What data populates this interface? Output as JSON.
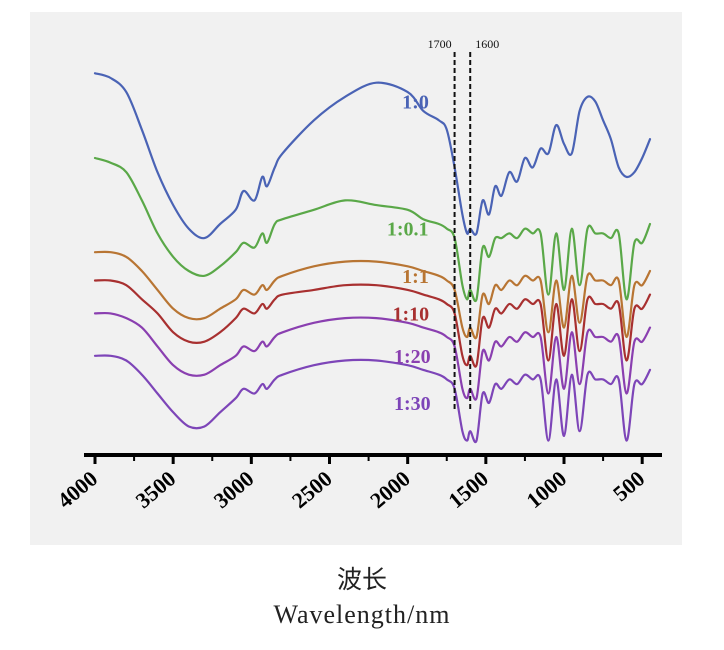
{
  "chart_data": {
    "type": "line",
    "xlabel_cn": "波长",
    "xlabel": "Wavelength/nm",
    "x_reversed": true,
    "xlim": [
      4000,
      450
    ],
    "xticks": [
      4000,
      3500,
      3000,
      2500,
      2000,
      1500,
      1000,
      500
    ],
    "tick_labels": [
      "4000",
      "3500",
      "3000",
      "2500",
      "2000",
      "1500",
      "1000",
      "500"
    ],
    "y_axis_shown": false,
    "grid": false,
    "legend": "inline labels on each trace",
    "reference_lines": [
      {
        "x": 1700,
        "label": "1700",
        "style": "dashed"
      },
      {
        "x": 1600,
        "label": "1600",
        "style": "dashed"
      }
    ],
    "series": [
      {
        "name": "1:0",
        "color": "#4a63b5",
        "offset": 0,
        "x": [
          4000,
          3900,
          3800,
          3700,
          3600,
          3500,
          3400,
          3300,
          3200,
          3100,
          3050,
          2980,
          2930,
          2900,
          2850,
          2800,
          2600,
          2400,
          2200,
          2000,
          1900,
          1800,
          1750,
          1700,
          1650,
          1620,
          1600,
          1560,
          1520,
          1480,
          1440,
          1400,
          1350,
          1300,
          1250,
          1200,
          1150,
          1100,
          1050,
          1000,
          950,
          900,
          850,
          800,
          750,
          700,
          650,
          600,
          550,
          500,
          450
        ],
        "y": [
          8.0,
          7.9,
          7.6,
          6.8,
          5.9,
          5.2,
          4.7,
          4.5,
          4.8,
          5.1,
          5.5,
          5.3,
          5.8,
          5.6,
          6.0,
          6.3,
          7.0,
          7.5,
          7.8,
          7.6,
          7.2,
          7.0,
          6.8,
          6.0,
          5.0,
          4.6,
          4.7,
          4.6,
          5.3,
          5.0,
          5.6,
          5.4,
          5.9,
          5.7,
          6.2,
          6.0,
          6.4,
          6.3,
          6.9,
          6.5,
          6.3,
          7.2,
          7.5,
          7.4,
          7.0,
          6.6,
          6.0,
          5.8,
          5.9,
          6.2,
          6.6
        ]
      },
      {
        "name": "1:0.1",
        "color": "#5aa848",
        "offset": 0,
        "x": [
          4000,
          3900,
          3800,
          3700,
          3600,
          3500,
          3400,
          3300,
          3200,
          3100,
          3050,
          2980,
          2930,
          2900,
          2850,
          2800,
          2600,
          2400,
          2200,
          2000,
          1900,
          1800,
          1750,
          1700,
          1650,
          1620,
          1600,
          1560,
          1520,
          1480,
          1440,
          1400,
          1350,
          1300,
          1250,
          1200,
          1150,
          1100,
          1050,
          1000,
          950,
          900,
          850,
          800,
          750,
          700,
          650,
          600,
          550,
          500,
          450
        ],
        "y": [
          6.2,
          6.1,
          5.9,
          5.3,
          4.6,
          4.1,
          3.8,
          3.7,
          3.9,
          4.2,
          4.4,
          4.3,
          4.6,
          4.4,
          4.8,
          4.9,
          5.1,
          5.3,
          5.2,
          5.1,
          4.9,
          4.8,
          4.7,
          4.5,
          3.5,
          3.2,
          3.4,
          3.2,
          4.3,
          4.1,
          4.5,
          4.5,
          4.6,
          4.5,
          4.7,
          4.6,
          4.6,
          3.3,
          4.6,
          3.4,
          4.7,
          3.5,
          4.7,
          4.6,
          4.6,
          4.5,
          4.6,
          3.2,
          4.4,
          4.4,
          4.8
        ]
      },
      {
        "name": "1:1",
        "color": "#b87533",
        "offset": 0,
        "x": [
          4000,
          3900,
          3800,
          3700,
          3600,
          3500,
          3400,
          3300,
          3200,
          3100,
          3050,
          2980,
          2930,
          2900,
          2850,
          2800,
          2600,
          2400,
          2200,
          2000,
          1900,
          1800,
          1750,
          1700,
          1650,
          1620,
          1600,
          1560,
          1520,
          1480,
          1440,
          1400,
          1350,
          1300,
          1250,
          1200,
          1150,
          1100,
          1050,
          1000,
          950,
          900,
          850,
          800,
          750,
          700,
          650,
          600,
          550,
          500,
          450
        ],
        "y": [
          4.2,
          4.2,
          4.1,
          3.8,
          3.4,
          3.0,
          2.8,
          2.8,
          3.0,
          3.2,
          3.4,
          3.3,
          3.5,
          3.4,
          3.6,
          3.7,
          3.9,
          4.0,
          4.0,
          3.9,
          3.8,
          3.7,
          3.6,
          3.4,
          2.6,
          2.4,
          2.6,
          2.4,
          3.3,
          3.1,
          3.5,
          3.4,
          3.6,
          3.5,
          3.7,
          3.6,
          3.6,
          2.5,
          3.6,
          2.6,
          3.7,
          2.7,
          3.7,
          3.6,
          3.6,
          3.5,
          3.6,
          2.4,
          3.5,
          3.5,
          3.8
        ]
      },
      {
        "name": "1:10",
        "color": "#a83030",
        "offset": 0,
        "x": [
          4000,
          3900,
          3800,
          3700,
          3600,
          3500,
          3400,
          3300,
          3200,
          3100,
          3050,
          2980,
          2930,
          2900,
          2850,
          2800,
          2600,
          2400,
          2200,
          2000,
          1900,
          1800,
          1750,
          1700,
          1650,
          1620,
          1600,
          1560,
          1520,
          1480,
          1440,
          1400,
          1350,
          1300,
          1250,
          1200,
          1150,
          1100,
          1050,
          1000,
          950,
          900,
          850,
          800,
          750,
          700,
          650,
          600,
          550,
          500,
          450
        ],
        "y": [
          3.6,
          3.6,
          3.5,
          3.2,
          2.9,
          2.5,
          2.3,
          2.3,
          2.5,
          2.8,
          3.0,
          2.9,
          3.1,
          3.0,
          3.2,
          3.3,
          3.4,
          3.5,
          3.5,
          3.4,
          3.3,
          3.2,
          3.1,
          2.9,
          2.0,
          1.8,
          2.0,
          1.8,
          2.8,
          2.6,
          3.0,
          2.9,
          3.1,
          3.0,
          3.2,
          3.1,
          3.1,
          1.9,
          3.1,
          2.0,
          3.2,
          2.1,
          3.2,
          3.1,
          3.1,
          3.0,
          3.1,
          1.9,
          3.0,
          3.0,
          3.3
        ]
      },
      {
        "name": "1:20",
        "color": "#8a3fb0",
        "offset": 0,
        "x": [
          4000,
          3900,
          3800,
          3700,
          3600,
          3500,
          3400,
          3300,
          3200,
          3100,
          3050,
          2980,
          2930,
          2900,
          2850,
          2800,
          2600,
          2400,
          2200,
          2000,
          1900,
          1800,
          1750,
          1700,
          1650,
          1620,
          1600,
          1560,
          1520,
          1480,
          1440,
          1400,
          1350,
          1300,
          1250,
          1200,
          1150,
          1100,
          1050,
          1000,
          950,
          900,
          850,
          800,
          750,
          700,
          650,
          600,
          550,
          500,
          450
        ],
        "y": [
          2.9,
          2.9,
          2.8,
          2.6,
          2.2,
          1.8,
          1.6,
          1.6,
          1.8,
          2.0,
          2.2,
          2.1,
          2.3,
          2.2,
          2.4,
          2.5,
          2.7,
          2.8,
          2.8,
          2.7,
          2.6,
          2.5,
          2.4,
          2.2,
          1.3,
          1.1,
          1.3,
          1.1,
          2.1,
          1.9,
          2.3,
          2.2,
          2.4,
          2.3,
          2.5,
          2.4,
          2.4,
          1.2,
          2.4,
          1.3,
          2.5,
          1.4,
          2.5,
          2.4,
          2.4,
          2.3,
          2.4,
          1.2,
          2.3,
          2.3,
          2.6
        ]
      },
      {
        "name": "1:30",
        "color": "#7d45b8",
        "offset": 0,
        "x": [
          4000,
          3900,
          3800,
          3700,
          3600,
          3500,
          3400,
          3300,
          3200,
          3100,
          3050,
          2980,
          2930,
          2900,
          2850,
          2800,
          2600,
          2400,
          2200,
          2000,
          1900,
          1800,
          1750,
          1700,
          1650,
          1620,
          1600,
          1560,
          1520,
          1480,
          1440,
          1400,
          1350,
          1300,
          1250,
          1200,
          1150,
          1100,
          1050,
          1000,
          950,
          900,
          850,
          800,
          750,
          700,
          650,
          600,
          550,
          500,
          450
        ],
        "y": [
          2.0,
          2.0,
          1.9,
          1.6,
          1.2,
          0.8,
          0.5,
          0.5,
          0.8,
          1.1,
          1.3,
          1.2,
          1.4,
          1.3,
          1.5,
          1.6,
          1.8,
          1.9,
          1.9,
          1.8,
          1.7,
          1.6,
          1.5,
          1.3,
          0.4,
          0.2,
          0.4,
          0.2,
          1.2,
          1.0,
          1.4,
          1.3,
          1.5,
          1.4,
          1.6,
          1.5,
          1.5,
          0.2,
          1.5,
          0.3,
          1.6,
          0.4,
          1.6,
          1.5,
          1.5,
          1.4,
          1.5,
          0.2,
          1.4,
          1.4,
          1.7
        ]
      }
    ],
    "series_label_anchor": [
      {
        "name": "1:0",
        "x": 1950,
        "y": 7.25
      },
      {
        "name": "1:0.1",
        "x": 2000,
        "y": 4.55
      },
      {
        "name": "1:1",
        "x": 1950,
        "y": 3.55
      },
      {
        "name": "1:10",
        "x": 1980,
        "y": 2.75
      },
      {
        "name": "1:20",
        "x": 1970,
        "y": 1.85
      },
      {
        "name": "1:30",
        "x": 1970,
        "y": 0.85
      }
    ],
    "ylim": [
      0,
      8.6
    ]
  }
}
